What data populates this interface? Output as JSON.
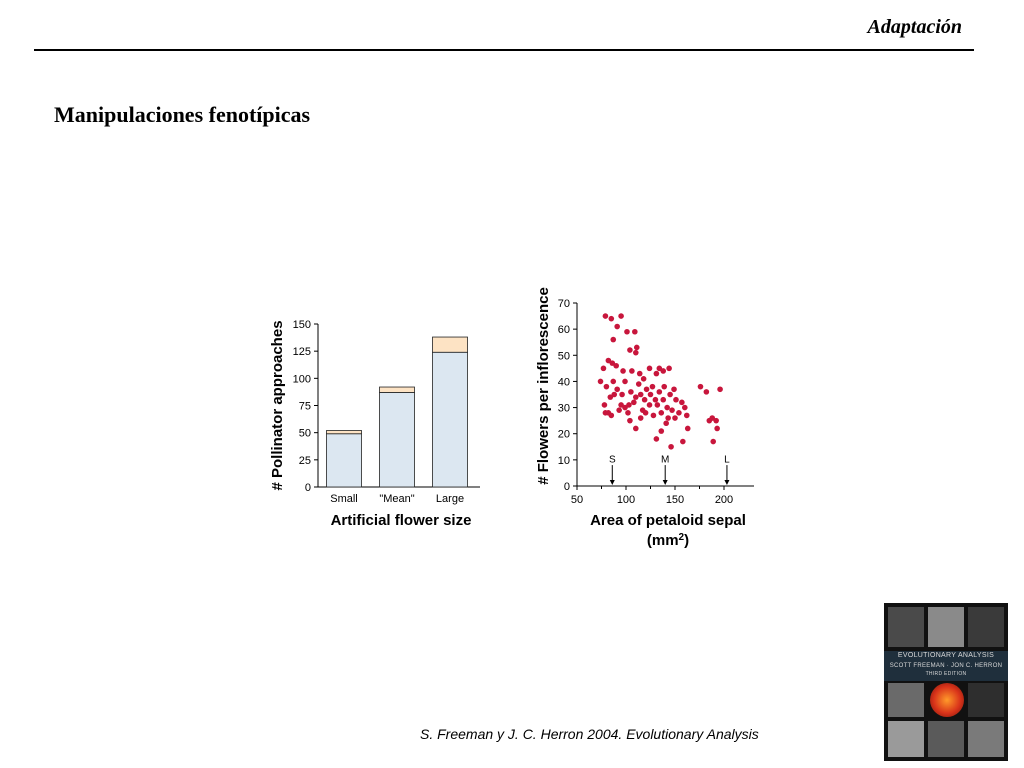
{
  "header": {
    "section_title": "Adaptación"
  },
  "slide": {
    "title": "Manipulaciones fenotípicas"
  },
  "citation": "S. Freeman y J. C. Herron 2004. Evolutionary Analysis",
  "book_cover": {
    "title": "EVOLUTIONARY ANALYSIS",
    "authors": "SCOTT FREEMAN · JON C. HERRON",
    "edition": "THIRD EDITION"
  },
  "chart_data": [
    {
      "type": "bar",
      "stacked": true,
      "xlabel": "Artificial flower size",
      "ylabel": "# Pollinator approaches",
      "categories": [
        "Small",
        "\"Mean\"",
        "Large"
      ],
      "series": [
        {
          "values": [
            49,
            87,
            124
          ],
          "color": "#dce7f1"
        },
        {
          "values": [
            3,
            5,
            14
          ],
          "color": "#fde3c4"
        }
      ],
      "ylim": [
        0,
        150
      ],
      "yticks": [
        0,
        25,
        50,
        75,
        100,
        125,
        150
      ]
    },
    {
      "type": "scatter",
      "xlabel": "Area of petaloid sepal",
      "xlabel_unit": "(mm",
      "xlabel_unit_sup": "2",
      "xlabel_unit_end": ")",
      "ylabel": "# Flowers per inflorescence",
      "xlim": [
        50,
        200
      ],
      "ylim": [
        0,
        70
      ],
      "xticks": [
        50,
        100,
        150,
        200
      ],
      "yticks": [
        0,
        10,
        20,
        30,
        40,
        50,
        60,
        70
      ],
      "point_color": "#c8163c",
      "markers": [
        {
          "label": "S",
          "x": 86
        },
        {
          "label": "M",
          "x": 140
        },
        {
          "label": "L",
          "x": 203
        }
      ],
      "points": [
        [
          79,
          65
        ],
        [
          85,
          64
        ],
        [
          91,
          61
        ],
        [
          95,
          65
        ],
        [
          87,
          56
        ],
        [
          101,
          59
        ],
        [
          109,
          59
        ],
        [
          104,
          52
        ],
        [
          111,
          53
        ],
        [
          110,
          51
        ],
        [
          77,
          45
        ],
        [
          80,
          38
        ],
        [
          82,
          48
        ],
        [
          86,
          47
        ],
        [
          90,
          46
        ],
        [
          97,
          44
        ],
        [
          106,
          44
        ],
        [
          114,
          43
        ],
        [
          118,
          41
        ],
        [
          124,
          45
        ],
        [
          131,
          43
        ],
        [
          134,
          45
        ],
        [
          138,
          44
        ],
        [
          144,
          45
        ],
        [
          74,
          40
        ],
        [
          78,
          31
        ],
        [
          82,
          28
        ],
        [
          85,
          27
        ],
        [
          88,
          35
        ],
        [
          91,
          37
        ],
        [
          95,
          31
        ],
        [
          96,
          35
        ],
        [
          99,
          30
        ],
        [
          102,
          28
        ],
        [
          103,
          31
        ],
        [
          105,
          36
        ],
        [
          108,
          32
        ],
        [
          110,
          34
        ],
        [
          113,
          39
        ],
        [
          115,
          35
        ],
        [
          117,
          29
        ],
        [
          119,
          33
        ],
        [
          121,
          37
        ],
        [
          124,
          31
        ],
        [
          125,
          35
        ],
        [
          127,
          38
        ],
        [
          130,
          33
        ],
        [
          132,
          31
        ],
        [
          134,
          36
        ],
        [
          136,
          28
        ],
        [
          138,
          33
        ],
        [
          139,
          38
        ],
        [
          142,
          30
        ],
        [
          143,
          26
        ],
        [
          145,
          35
        ],
        [
          147,
          29
        ],
        [
          149,
          37
        ],
        [
          151,
          33
        ],
        [
          154,
          28
        ],
        [
          157,
          32
        ],
        [
          160,
          30
        ],
        [
          162,
          27
        ],
        [
          79,
          28
        ],
        [
          84,
          34
        ],
        [
          87,
          40
        ],
        [
          93,
          29
        ],
        [
          99,
          40
        ],
        [
          104,
          25
        ],
        [
          110,
          22
        ],
        [
          115,
          26
        ],
        [
          120,
          28
        ],
        [
          128,
          27
        ],
        [
          131,
          18
        ],
        [
          136,
          21
        ],
        [
          141,
          24
        ],
        [
          146,
          15
        ],
        [
          150,
          26
        ],
        [
          158,
          17
        ],
        [
          163,
          22
        ],
        [
          176,
          38
        ],
        [
          182,
          36
        ],
        [
          185,
          25
        ],
        [
          188,
          26
        ],
        [
          192,
          25
        ],
        [
          193,
          22
        ],
        [
          189,
          17
        ],
        [
          196,
          37
        ]
      ]
    }
  ]
}
